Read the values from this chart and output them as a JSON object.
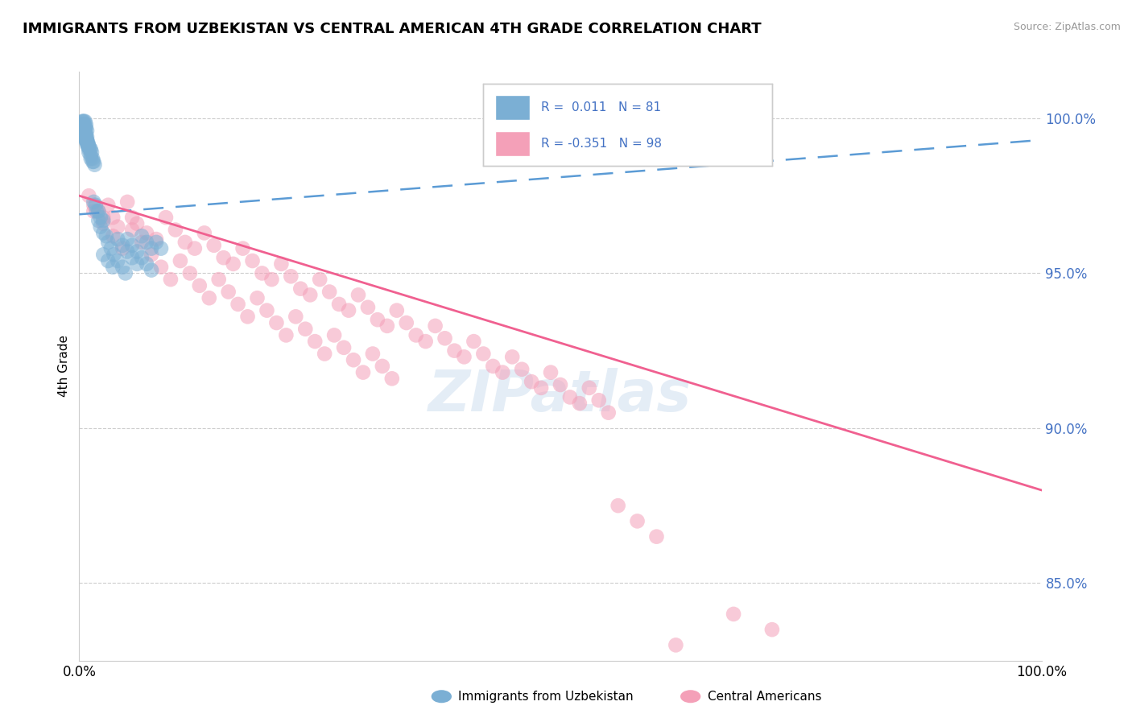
{
  "title": "IMMIGRANTS FROM UZBEKISTAN VS CENTRAL AMERICAN 4TH GRADE CORRELATION CHART",
  "source": "Source: ZipAtlas.com",
  "ylabel": "4th Grade",
  "r_uzbekistan": 0.011,
  "n_uzbekistan": 81,
  "r_central": -0.351,
  "n_central": 98,
  "legend_label_1": "Immigrants from Uzbekistan",
  "legend_label_2": "Central Americans",
  "blue_color": "#7bafd4",
  "pink_color": "#f4a0b8",
  "blue_line_color": "#5b9bd5",
  "pink_line_color": "#f06090",
  "text_color_blue": "#4472c4",
  "xmin": 0.0,
  "xmax": 1.0,
  "ymin": 0.825,
  "ymax": 1.015,
  "yticks": [
    0.85,
    0.9,
    0.95,
    1.0
  ],
  "ytick_labels": [
    "85.0%",
    "90.0%",
    "95.0%",
    "100.0%"
  ],
  "blue_trend": [
    0.969,
    0.993
  ],
  "pink_trend": [
    0.975,
    0.88
  ],
  "uzbekistan_x": [
    0.003,
    0.004,
    0.005,
    0.006,
    0.007,
    0.003,
    0.005,
    0.006,
    0.007,
    0.008,
    0.004,
    0.005,
    0.006,
    0.007,
    0.004,
    0.005,
    0.006,
    0.007,
    0.008,
    0.005,
    0.006,
    0.007,
    0.008,
    0.009,
    0.006,
    0.007,
    0.008,
    0.009,
    0.01,
    0.007,
    0.008,
    0.009,
    0.01,
    0.011,
    0.008,
    0.009,
    0.01,
    0.012,
    0.013,
    0.01,
    0.012,
    0.014,
    0.015,
    0.012,
    0.014,
    0.016,
    0.015,
    0.018,
    0.02,
    0.017,
    0.02,
    0.022,
    0.025,
    0.022,
    0.025,
    0.028,
    0.03,
    0.033,
    0.036,
    0.04,
    0.045,
    0.048,
    0.05,
    0.055,
    0.06,
    0.065,
    0.07,
    0.075,
    0.08,
    0.085,
    0.025,
    0.03,
    0.035,
    0.04,
    0.045,
    0.05,
    0.055,
    0.06,
    0.065,
    0.07,
    0.075
  ],
  "uzbekistan_y": [
    0.999,
    0.999,
    0.999,
    0.999,
    0.998,
    0.998,
    0.998,
    0.997,
    0.997,
    0.996,
    0.997,
    0.996,
    0.996,
    0.995,
    0.996,
    0.995,
    0.995,
    0.994,
    0.994,
    0.995,
    0.994,
    0.993,
    0.993,
    0.992,
    0.994,
    0.993,
    0.993,
    0.992,
    0.991,
    0.993,
    0.992,
    0.991,
    0.991,
    0.99,
    0.992,
    0.991,
    0.99,
    0.99,
    0.989,
    0.989,
    0.988,
    0.987,
    0.986,
    0.987,
    0.986,
    0.985,
    0.973,
    0.97,
    0.967,
    0.972,
    0.97,
    0.968,
    0.967,
    0.965,
    0.963,
    0.962,
    0.96,
    0.958,
    0.956,
    0.954,
    0.952,
    0.95,
    0.961,
    0.959,
    0.957,
    0.955,
    0.953,
    0.951,
    0.96,
    0.958,
    0.956,
    0.954,
    0.952,
    0.961,
    0.959,
    0.957,
    0.955,
    0.953,
    0.962,
    0.96,
    0.958
  ],
  "central_x": [
    0.005,
    0.01,
    0.015,
    0.02,
    0.025,
    0.03,
    0.035,
    0.04,
    0.05,
    0.055,
    0.06,
    0.07,
    0.08,
    0.09,
    0.1,
    0.11,
    0.12,
    0.13,
    0.14,
    0.15,
    0.16,
    0.17,
    0.18,
    0.19,
    0.2,
    0.21,
    0.22,
    0.23,
    0.24,
    0.25,
    0.26,
    0.27,
    0.28,
    0.29,
    0.3,
    0.31,
    0.32,
    0.33,
    0.34,
    0.35,
    0.36,
    0.37,
    0.38,
    0.39,
    0.4,
    0.41,
    0.42,
    0.43,
    0.44,
    0.45,
    0.46,
    0.47,
    0.48,
    0.49,
    0.5,
    0.51,
    0.52,
    0.53,
    0.54,
    0.55,
    0.015,
    0.025,
    0.035,
    0.045,
    0.055,
    0.065,
    0.075,
    0.085,
    0.095,
    0.105,
    0.115,
    0.125,
    0.135,
    0.145,
    0.155,
    0.165,
    0.175,
    0.185,
    0.195,
    0.205,
    0.215,
    0.225,
    0.235,
    0.245,
    0.255,
    0.265,
    0.275,
    0.285,
    0.295,
    0.305,
    0.315,
    0.325,
    0.56,
    0.58,
    0.6,
    0.62,
    0.68,
    0.72
  ],
  "central_y": [
    0.997,
    0.975,
    0.972,
    0.97,
    0.968,
    0.972,
    0.968,
    0.965,
    0.973,
    0.968,
    0.966,
    0.963,
    0.961,
    0.968,
    0.964,
    0.96,
    0.958,
    0.963,
    0.959,
    0.955,
    0.953,
    0.958,
    0.954,
    0.95,
    0.948,
    0.953,
    0.949,
    0.945,
    0.943,
    0.948,
    0.944,
    0.94,
    0.938,
    0.943,
    0.939,
    0.935,
    0.933,
    0.938,
    0.934,
    0.93,
    0.928,
    0.933,
    0.929,
    0.925,
    0.923,
    0.928,
    0.924,
    0.92,
    0.918,
    0.923,
    0.919,
    0.915,
    0.913,
    0.918,
    0.914,
    0.91,
    0.908,
    0.913,
    0.909,
    0.905,
    0.97,
    0.966,
    0.962,
    0.958,
    0.964,
    0.96,
    0.956,
    0.952,
    0.948,
    0.954,
    0.95,
    0.946,
    0.942,
    0.948,
    0.944,
    0.94,
    0.936,
    0.942,
    0.938,
    0.934,
    0.93,
    0.936,
    0.932,
    0.928,
    0.924,
    0.93,
    0.926,
    0.922,
    0.918,
    0.924,
    0.92,
    0.916,
    0.875,
    0.87,
    0.865,
    0.83,
    0.84,
    0.835
  ]
}
